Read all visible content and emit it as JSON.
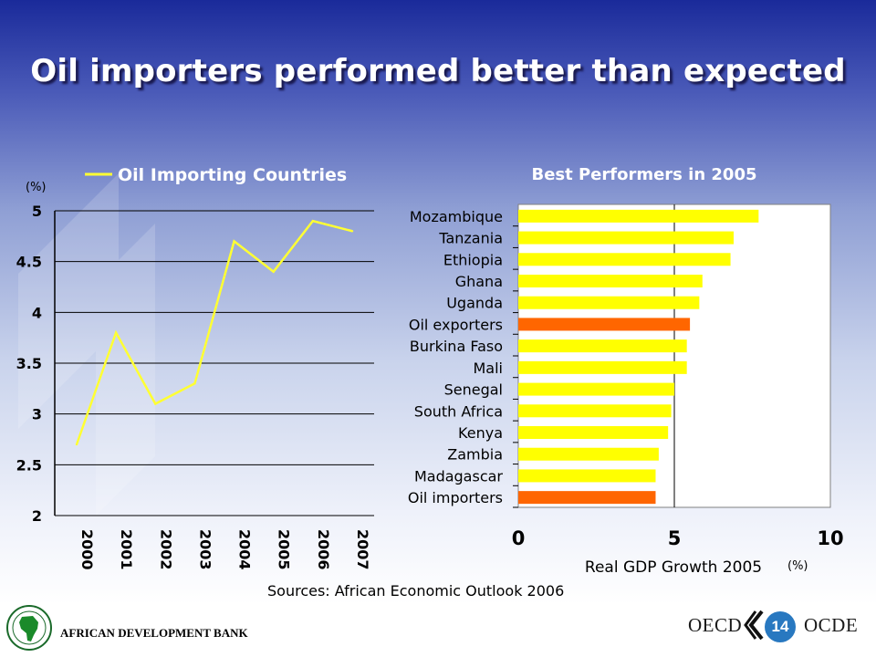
{
  "slide": {
    "title": "Oil importers performed better than expected",
    "source_note": "Sources: African Economic Outlook 2006",
    "footer_left": "AFRICAN DEVELOPMENT BANK",
    "footer_oecd": "OECD",
    "footer_ocde": "OCDE",
    "page_number": "14"
  },
  "chart_data": [
    {
      "type": "line",
      "unit_label": "(%)",
      "x": [
        "2000",
        "2001",
        "2002",
        "2003",
        "2004",
        "2005",
        "2006",
        "2007"
      ],
      "series": [
        {
          "name": "Oil Importing Countries",
          "values": [
            2.7,
            3.8,
            3.1,
            3.3,
            4.7,
            4.4,
            4.9,
            4.8
          ],
          "color": "#ffff33"
        }
      ],
      "ylim": [
        2,
        5
      ],
      "yticks": [
        "2",
        "2.5",
        "3",
        "3.5",
        "4",
        "4.5",
        "5"
      ],
      "grid": true,
      "legend": "top"
    },
    {
      "type": "bar",
      "orientation": "horizontal",
      "title": "Best Performers in 2005",
      "xlabel": "Real GDP Growth 2005",
      "unit_label": "(%)",
      "categories": [
        "Mozambique",
        "Tanzania",
        "Ethiopia",
        "Ghana",
        "Uganda",
        "Oil exporters",
        "Burkina Faso",
        "Mali",
        "Senegal",
        "South Africa",
        "Kenya",
        "Zambia",
        "Madagascar",
        "Oil importers"
      ],
      "values": [
        7.7,
        6.9,
        6.8,
        5.9,
        5.8,
        5.5,
        5.4,
        5.4,
        5.0,
        4.9,
        4.8,
        4.5,
        4.4,
        4.4
      ],
      "bar_colors": [
        "#ffff00",
        "#ffff00",
        "#ffff00",
        "#ffff00",
        "#ffff00",
        "#ff6600",
        "#ffff00",
        "#ffff00",
        "#ffff00",
        "#ffff00",
        "#ffff00",
        "#ffff00",
        "#ffff00",
        "#ff6600"
      ],
      "xlim": [
        0,
        10
      ],
      "xticks": [
        "0",
        "5",
        "10"
      ],
      "grid": true
    }
  ]
}
